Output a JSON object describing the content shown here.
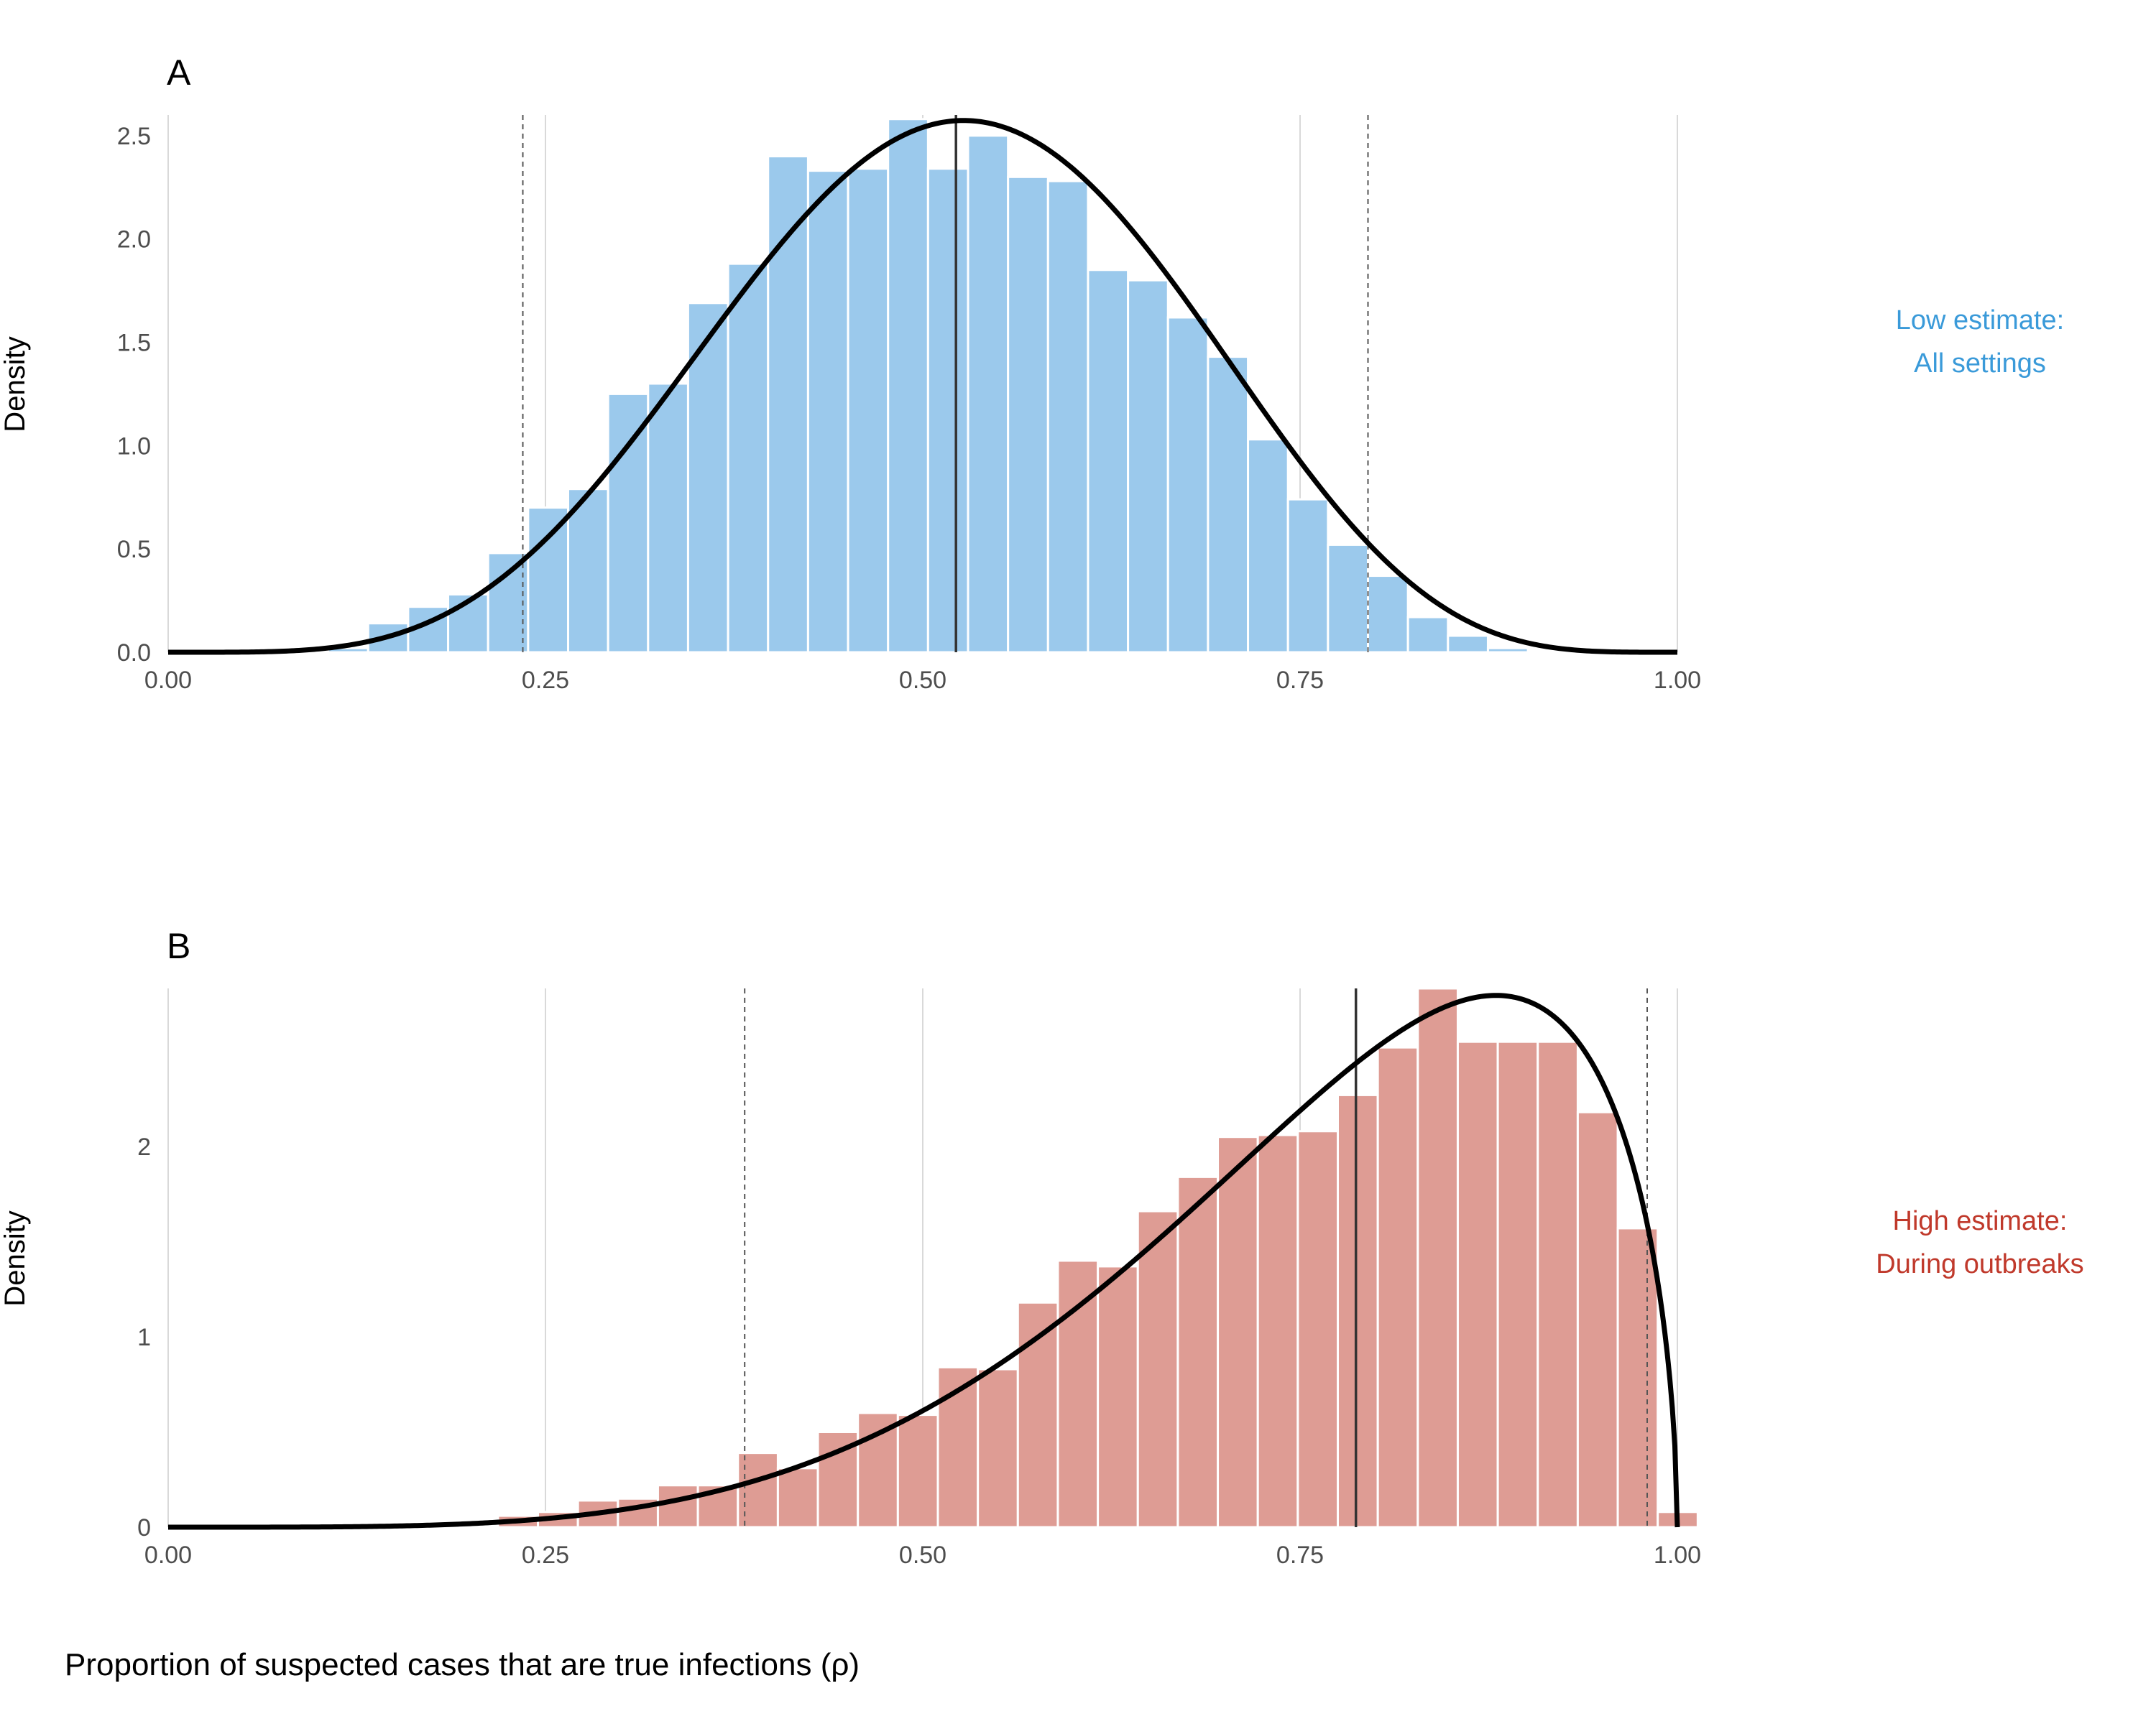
{
  "xlabel": "Proportion of suspected cases that are true infections (ρ)",
  "chart_data": [
    {
      "type": "bar",
      "panel": "A",
      "ylabel": "Density",
      "annotation": {
        "lines": [
          "Low estimate:",
          "All settings"
        ],
        "color": "#3a9ad9"
      },
      "bar_color": "#9bc9ec",
      "xlim": [
        0,
        1
      ],
      "ylim": [
        0,
        2.6
      ],
      "x_ticks": [
        0,
        0.25,
        0.5,
        0.75,
        1
      ],
      "x_tick_labels": [
        "0.00",
        "0.25",
        "0.50",
        "0.75",
        "1.00"
      ],
      "y_ticks": [
        0,
        0.5,
        1,
        1.5,
        2,
        2.5
      ],
      "y_tick_labels": [
        "0.0",
        "0.5",
        "1.0",
        "1.5",
        "2.0",
        "2.5"
      ],
      "bin_width": 0.0265,
      "bins_start": 0.0265,
      "values": [
        0,
        0,
        0,
        0.02,
        0.14,
        0.22,
        0.28,
        0.48,
        0.7,
        0.79,
        1.25,
        1.3,
        1.69,
        1.88,
        2.4,
        2.33,
        2.34,
        2.58,
        2.34,
        2.5,
        2.3,
        2.28,
        1.85,
        1.8,
        1.62,
        1.43,
        1.03,
        0.74,
        0.52,
        0.37,
        0.17,
        0.08,
        0.02,
        0,
        0,
        0,
        0,
        0
      ],
      "median": 0.522,
      "ci": [
        0.235,
        0.795
      ],
      "curve": {
        "distribution": "beta",
        "alpha": 5.67,
        "beta": 5.19
      }
    },
    {
      "type": "bar",
      "panel": "B",
      "ylabel": "Density",
      "annotation": {
        "lines": [
          "High estimate:",
          "During outbreaks"
        ],
        "color": "#c0392b"
      },
      "bar_color": "#de9c94",
      "xlim": [
        0,
        1
      ],
      "ylim": [
        0,
        2.83
      ],
      "x_ticks": [
        0,
        0.25,
        0.5,
        0.75,
        1
      ],
      "x_tick_labels": [
        "0.00",
        "0.25",
        "0.50",
        "0.75",
        "1.00"
      ],
      "y_ticks": [
        0,
        1,
        2
      ],
      "y_tick_labels": [
        "0",
        "1",
        "2"
      ],
      "bin_width": 0.0265,
      "bins_start": 0.2185,
      "values": [
        0.06,
        0.08,
        0.14,
        0.15,
        0.22,
        0.22,
        0.39,
        0.31,
        0.5,
        0.6,
        0.59,
        0.84,
        0.83,
        1.18,
        1.4,
        1.37,
        1.66,
        1.84,
        2.05,
        2.06,
        2.08,
        2.27,
        2.52,
        2.83,
        2.55,
        2.55,
        2.55,
        2.18,
        1.57,
        0.08
      ],
      "median": 0.787,
      "ci": [
        0.382,
        0.98
      ],
      "curve": {
        "distribution": "beta",
        "alpha": 5.1,
        "beta": 1.56
      }
    }
  ]
}
